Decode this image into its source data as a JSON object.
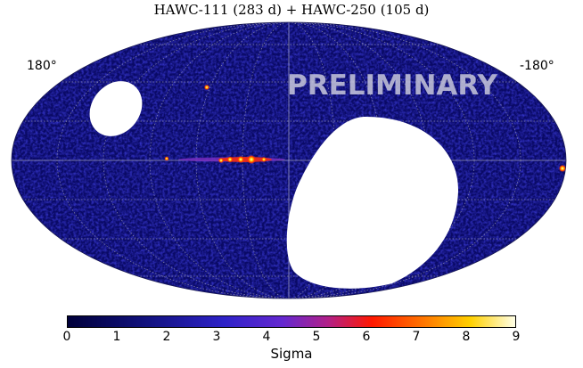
{
  "figure": {
    "title": "HAWC-111 (283 d) + HAWC-250 (105 d)",
    "lon_left_label": "180°",
    "lon_right_label": "-180°",
    "watermark": "PRELIMINARY",
    "projection": "mollweide",
    "grid": true
  },
  "colorbar": {
    "label": "Sigma",
    "range": [
      0,
      9
    ],
    "ticks": [
      "0",
      "1",
      "2",
      "3",
      "4",
      "5",
      "6",
      "7",
      "8",
      "9"
    ],
    "colormap": [
      "#00003a",
      "#1a1aa0",
      "#3e2ad8",
      "#7a2cc0",
      "#c0206a",
      "#ff2a00",
      "#ff8a00",
      "#ffd000",
      "#ffffe8"
    ]
  },
  "colors": {
    "background_map": "#0a0a66",
    "grid": "#8888aa",
    "masked_region": "#ffffff"
  }
}
